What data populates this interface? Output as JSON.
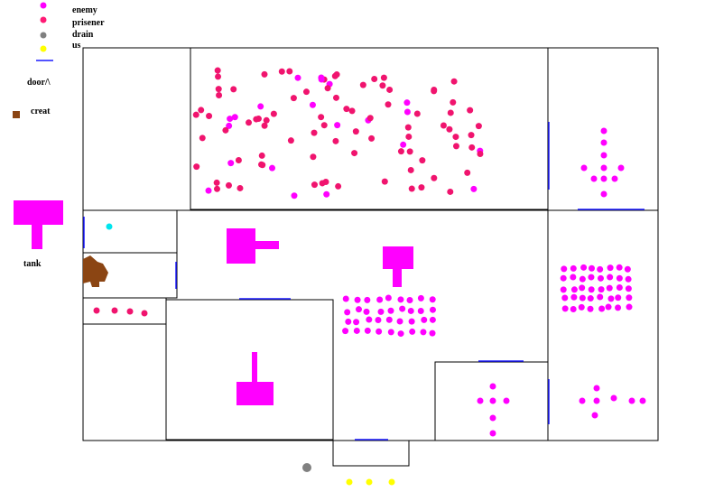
{
  "legend": {
    "enemy": "enemy",
    "prisoner": "prisener",
    "drain": "drain",
    "us": "us",
    "door": "door/\\",
    "creature": "creat",
    "tank": "tank"
  }
}
